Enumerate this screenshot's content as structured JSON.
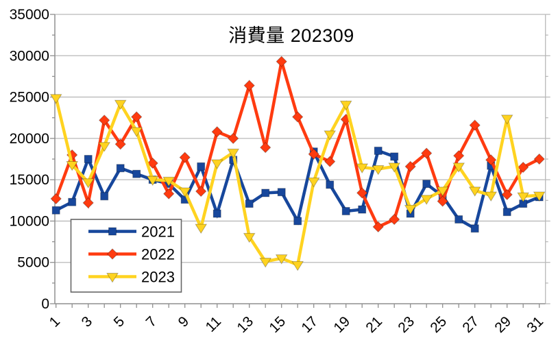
{
  "chart_data": {
    "type": "line",
    "title": "消費量 202309",
    "xlabel": "",
    "ylabel": "",
    "x": [
      1,
      2,
      3,
      4,
      5,
      6,
      7,
      8,
      9,
      10,
      11,
      12,
      13,
      14,
      15,
      16,
      17,
      18,
      19,
      20,
      21,
      22,
      23,
      24,
      25,
      26,
      27,
      28,
      29,
      30,
      31
    ],
    "x_tick_labels": [
      "1",
      "3",
      "5",
      "7",
      "9",
      "11",
      "13",
      "15",
      "17",
      "19",
      "21",
      "23",
      "25",
      "27",
      "29",
      "31"
    ],
    "y_tick_labels": [
      "0",
      "5000",
      "10000",
      "15000",
      "20000",
      "25000",
      "30000",
      "35000"
    ],
    "ylim": [
      0,
      35000
    ],
    "y_major_step": 5000,
    "y_minor_step": 2500,
    "grid": "horizontal-major",
    "legend_position": "inside-lower-left",
    "series": [
      {
        "name": "2021",
        "marker": "square",
        "color": "#17479C",
        "values": [
          11300,
          12300,
          17500,
          13000,
          16400,
          15700,
          15000,
          14500,
          12600,
          16600,
          10900,
          17400,
          12100,
          13400,
          13500,
          10000,
          18400,
          14400,
          11200,
          11400,
          18500,
          17800,
          10900,
          14500,
          13000,
          10200,
          9100,
          16700,
          11100,
          12100,
          12900
        ]
      },
      {
        "name": "2022",
        "marker": "diamond",
        "color": "#FF3B10",
        "values": [
          12700,
          18000,
          12200,
          22200,
          19300,
          22600,
          17000,
          13300,
          17700,
          13600,
          20800,
          20000,
          26400,
          18900,
          29300,
          22600,
          18100,
          17200,
          22300,
          13400,
          9300,
          10200,
          16600,
          18200,
          12400,
          17900,
          21600,
          17400,
          13200,
          16500,
          17500
        ]
      },
      {
        "name": "2023",
        "marker": "triangle-down",
        "color": "#FFD320",
        "values": [
          24900,
          16800,
          14700,
          19100,
          24200,
          20900,
          15000,
          14900,
          13600,
          9200,
          17000,
          18300,
          8100,
          5100,
          5500,
          4700,
          14800,
          20500,
          24100,
          16500,
          16300,
          16600,
          11500,
          12700,
          13700,
          16600,
          13700,
          13100,
          22400,
          13000,
          13100
        ]
      }
    ]
  },
  "colors": {
    "background": "#ffffff",
    "grid": "#b9b9b9",
    "axis": "#8f8f8f",
    "text": "#000000",
    "legend_border": "#666666",
    "legend_fill": "#ffffff"
  }
}
